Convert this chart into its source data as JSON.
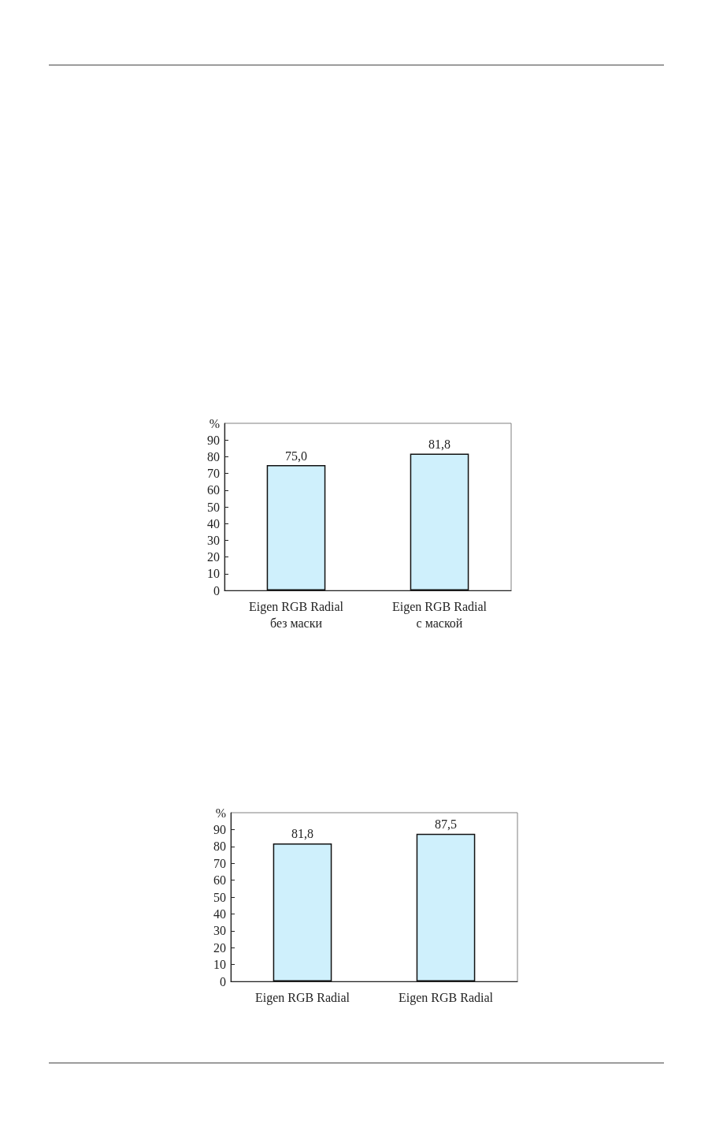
{
  "chart_data": [
    {
      "type": "bar",
      "categories": [
        "Eigen RGB Radial\nбез маски",
        "Eigen RGB Radial\nс маской"
      ],
      "values": [
        75.0,
        81.8
      ],
      "value_labels": [
        "75,0",
        "81,8"
      ],
      "color": "#cff0fc",
      "ylabel": "%",
      "ylim": [
        0,
        100
      ],
      "yticks": [
        0,
        10,
        20,
        30,
        40,
        50,
        60,
        70,
        80,
        90
      ]
    },
    {
      "type": "bar",
      "categories": [
        "Eigen RGB Radial",
        "Eigen RGB Radial"
      ],
      "values": [
        81.8,
        87.5
      ],
      "value_labels": [
        "81,8",
        "87,5"
      ],
      "color": "#cff0fc",
      "ylabel": "%",
      "ylim": [
        0,
        100
      ],
      "yticks": [
        0,
        10,
        20,
        30,
        40,
        50,
        60,
        70,
        80,
        90
      ]
    }
  ]
}
